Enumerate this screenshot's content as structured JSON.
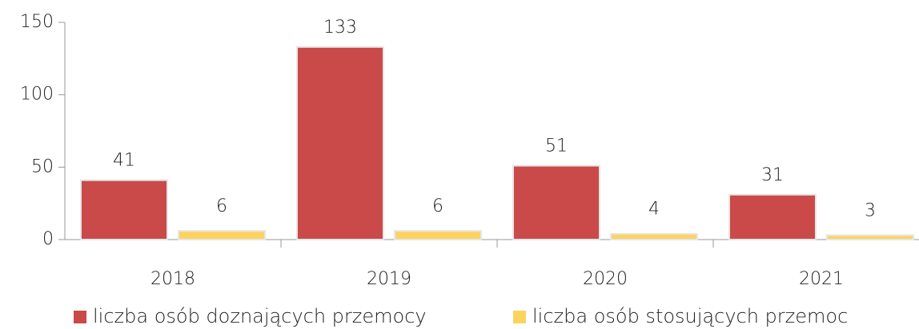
{
  "chart_data": {
    "type": "bar",
    "categories": [
      "2018",
      "2019",
      "2020",
      "2021"
    ],
    "series": [
      {
        "name": "liczba osób doznających przemocy",
        "color": "#c94a48",
        "values": [
          41,
          133,
          51,
          31
        ]
      },
      {
        "name": "liczba osób stosujących przemoc",
        "color": "#fdd35f",
        "values": [
          6,
          6,
          4,
          3
        ]
      }
    ],
    "ylim": [
      0,
      150
    ],
    "yticks": [
      0,
      50,
      100,
      150
    ],
    "grid": false,
    "legend": "bottom"
  }
}
